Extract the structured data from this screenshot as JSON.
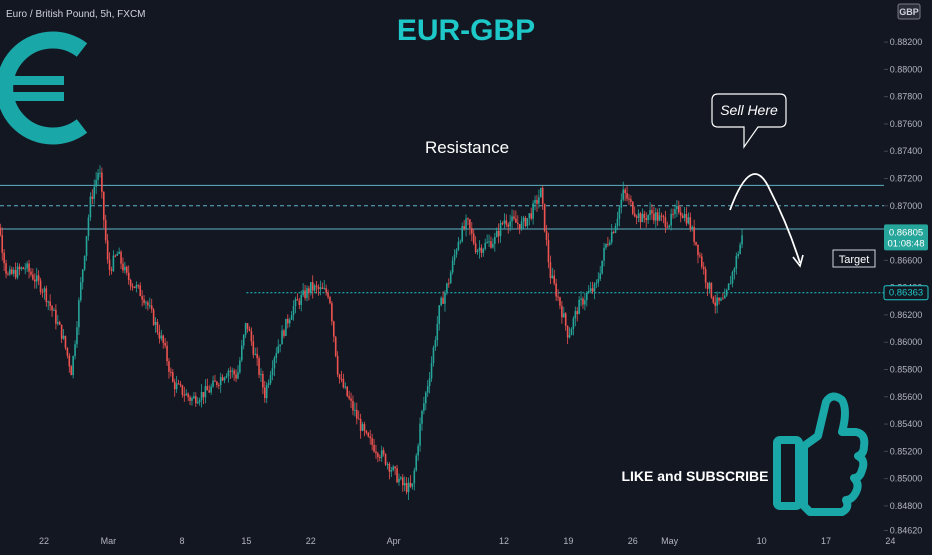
{
  "header": {
    "symbol_info": "Euro / British Pound, 5h, FXCM",
    "currency_badge": "GBP"
  },
  "chart_data": {
    "type": "candlestick",
    "title": "EUR-GBP",
    "x_ticks": [
      "22",
      "Mar",
      "8",
      "15",
      "22",
      "Apr",
      "12",
      "19",
      "26",
      "May",
      "10",
      "17",
      "24"
    ],
    "y_ticks": [
      0.8462,
      0.848,
      0.85,
      0.852,
      0.854,
      0.856,
      0.858,
      0.86,
      0.862,
      0.864,
      0.866,
      0.868,
      0.87,
      0.872,
      0.874,
      0.876,
      0.878,
      0.88,
      0.882
    ],
    "y_tick_labels": [
      "0.84620",
      "0.84800",
      "0.85000",
      "0.85200",
      "0.85400",
      "0.85600",
      "0.85800",
      "0.86000",
      "0.86200",
      "0.86400",
      "0.86600",
      "0.86800",
      "0.87000",
      "0.87200",
      "0.87400",
      "0.87600",
      "0.87800",
      "0.88000",
      "0.88200"
    ],
    "ylim": [
      0.8455,
      0.8845
    ],
    "grid": false,
    "price_path": [
      [
        "Feb 16",
        0.8705
      ],
      [
        "Feb 17",
        0.8688
      ],
      [
        "Feb 18",
        0.8648
      ],
      [
        "Feb 20",
        0.8655
      ],
      [
        "Feb 22",
        0.8638
      ],
      [
        "Feb 24",
        0.8605
      ],
      [
        "Feb 25",
        0.8578
      ],
      [
        "Feb 26",
        0.8642
      ],
      [
        "Feb 27",
        0.8702
      ],
      [
        "Feb 28",
        0.8728
      ],
      [
        "Mar 1",
        0.8652
      ],
      [
        "Mar 2",
        0.8665
      ],
      [
        "Mar 3",
        0.8648
      ],
      [
        "Mar 5",
        0.8632
      ],
      [
        "Mar 7",
        0.8598
      ],
      [
        "Mar 8",
        0.857
      ],
      [
        "Mar 10",
        0.8558
      ],
      [
        "Mar 12",
        0.8565
      ],
      [
        "Mar 14",
        0.858
      ],
      [
        "Mar 15",
        0.8575
      ],
      [
        "Mar 16",
        0.8615
      ],
      [
        "Mar 18",
        0.8562
      ],
      [
        "Mar 19",
        0.859
      ],
      [
        "Mar 21",
        0.8625
      ],
      [
        "Mar 23",
        0.864
      ],
      [
        "Mar 25",
        0.8636
      ],
      [
        "Mar 26",
        0.8575
      ],
      [
        "Mar 28",
        0.8545
      ],
      [
        "Mar 29",
        0.853
      ],
      [
        "Mar 31",
        0.8515
      ],
      [
        "Apr 1",
        0.8505
      ],
      [
        "Apr 2",
        0.8495
      ],
      [
        "Apr 3",
        0.8492
      ],
      [
        "Apr 4",
        0.8545
      ],
      [
        "Apr 5",
        0.858
      ],
      [
        "Apr 6",
        0.8625
      ],
      [
        "Apr 7",
        0.8645
      ],
      [
        "Apr 8",
        0.8675
      ],
      [
        "Apr 9",
        0.8688
      ],
      [
        "Apr 10",
        0.8668
      ],
      [
        "Apr 12",
        0.8675
      ],
      [
        "Apr 13",
        0.869
      ],
      [
        "Apr 15",
        0.8686
      ],
      [
        "Apr 16",
        0.8695
      ],
      [
        "Apr 17",
        0.871
      ],
      [
        "Apr 18",
        0.865
      ],
      [
        "Apr 19",
        0.863
      ],
      [
        "Apr 20",
        0.8605
      ],
      [
        "Apr 21",
        0.8625
      ],
      [
        "Apr 22",
        0.8635
      ],
      [
        "Apr 23",
        0.864
      ],
      [
        "Apr 24",
        0.867
      ],
      [
        "Apr 25",
        0.8685
      ],
      [
        "Apr 26",
        0.871
      ],
      [
        "Apr 27",
        0.8698
      ],
      [
        "Apr 28",
        0.869
      ],
      [
        "Apr 29",
        0.8695
      ],
      [
        "Apr 30",
        0.869
      ],
      [
        "May 1",
        0.8688
      ],
      [
        "May 2",
        0.8698
      ],
      [
        "May 3",
        0.869
      ],
      [
        "May 4",
        0.867
      ],
      [
        "May 5",
        0.8645
      ],
      [
        "May 6",
        0.8628
      ],
      [
        "May 7",
        0.863
      ],
      [
        "May 8",
        0.8655
      ],
      [
        "May 9",
        0.868
      ]
    ],
    "current_price": {
      "value": "0.86805",
      "countdown": "01:08:48",
      "color": "#26a69a"
    },
    "horizontal_lines": [
      {
        "price": 0.8715,
        "style": "solid",
        "color": "#5fb3c8"
      },
      {
        "price": 0.87,
        "style": "dashed",
        "color": "#5fb3c8"
      },
      {
        "price": 0.8683,
        "style": "solid",
        "color": "#5fb3c8"
      }
    ],
    "target_level": {
      "price": 0.86363,
      "label_value": "0.86363",
      "color": "#1ec8c8"
    },
    "annotations": {
      "resistance": "Resistance",
      "sell_here": "Sell Here",
      "target": "Target",
      "like": "LIKE and SUBSCRIBE"
    },
    "colors": {
      "up": "#26a69a",
      "down": "#ef5350",
      "title": "#1ec8c8",
      "icon": "#1aa7a7",
      "background": "#131722"
    }
  }
}
